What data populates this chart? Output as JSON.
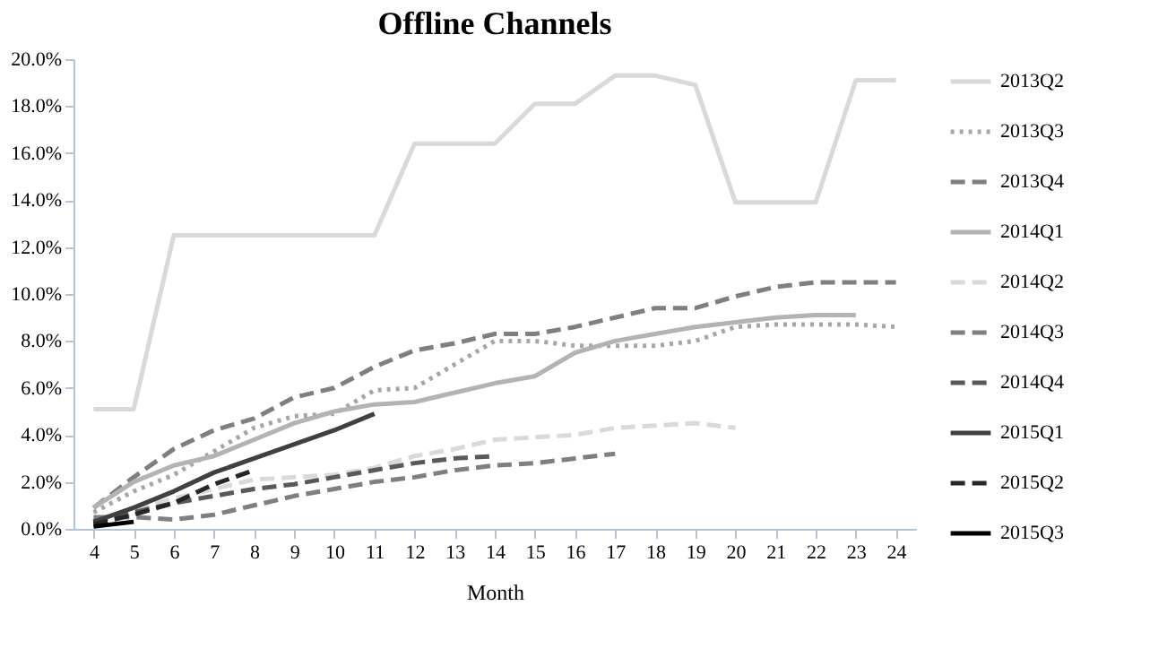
{
  "chart_data": {
    "type": "line",
    "title": "Offline Channels",
    "xlabel": "Month",
    "xlim": [
      3.5,
      24.5
    ],
    "xticks": [
      4,
      5,
      6,
      7,
      8,
      9,
      10,
      11,
      12,
      13,
      14,
      15,
      16,
      17,
      18,
      19,
      20,
      21,
      22,
      23,
      24
    ],
    "ylim": [
      0,
      20
    ],
    "yticks": [
      {
        "value": 0,
        "label": "0.0%"
      },
      {
        "value": 2,
        "label": "2.0%"
      },
      {
        "value": 4,
        "label": "4.0%"
      },
      {
        "value": 6,
        "label": "6.0%"
      },
      {
        "value": 8,
        "label": "8.0%"
      },
      {
        "value": 10,
        "label": "10.0%"
      },
      {
        "value": 12,
        "label": "12.0%"
      },
      {
        "value": 14,
        "label": "14.0%"
      },
      {
        "value": 16,
        "label": "16.0%"
      },
      {
        "value": 18,
        "label": "18.0%"
      },
      {
        "value": 20,
        "label": "20.0%"
      }
    ],
    "grid": false,
    "legend": "right",
    "marker": "none",
    "series": [
      {
        "name": "2013Q2",
        "color": "#d9d9d9",
        "line_style": "solid",
        "x": [
          4,
          5,
          6,
          7,
          8,
          9,
          10,
          11,
          12,
          13,
          14,
          15,
          16,
          17,
          18,
          19,
          20,
          21,
          22,
          23,
          24
        ],
        "values": [
          5.1,
          5.1,
          12.5,
          12.5,
          12.5,
          12.5,
          12.5,
          12.5,
          16.4,
          16.4,
          16.4,
          18.1,
          18.1,
          19.3,
          19.3,
          18.9,
          13.9,
          13.9,
          13.9,
          19.1,
          19.1
        ]
      },
      {
        "name": "2013Q3",
        "color": "#a6a6a6",
        "line_style": "dotted",
        "x": [
          4,
          5,
          6,
          7,
          8,
          9,
          10,
          11,
          12,
          13,
          14,
          15,
          16,
          17,
          18,
          19,
          20,
          21,
          22,
          23,
          24
        ],
        "values": [
          0.7,
          1.6,
          2.3,
          3.3,
          4.3,
          4.8,
          4.9,
          5.9,
          6.0,
          7.0,
          8.0,
          8.0,
          7.8,
          7.8,
          7.8,
          8.0,
          8.6,
          8.7,
          8.7,
          8.7,
          8.6
        ]
      },
      {
        "name": "2013Q4",
        "color": "#7f7f7f",
        "line_style": "dashed",
        "x": [
          4,
          5,
          6,
          7,
          8,
          9,
          10,
          11,
          12,
          13,
          14,
          15,
          16,
          17,
          18,
          19,
          20,
          21,
          22,
          23,
          24
        ],
        "values": [
          0.9,
          2.2,
          3.4,
          4.2,
          4.7,
          5.6,
          6.0,
          6.9,
          7.6,
          7.9,
          8.3,
          8.3,
          8.6,
          9.0,
          9.4,
          9.4,
          9.9,
          10.3,
          10.5,
          10.5,
          10.5
        ]
      },
      {
        "name": "2014Q1",
        "color": "#b3b3b3",
        "line_style": "solid",
        "x": [
          4,
          5,
          6,
          7,
          8,
          9,
          10,
          11,
          12,
          13,
          14,
          15,
          16,
          17,
          18,
          19,
          20,
          21,
          22,
          23
        ],
        "values": [
          0.9,
          2.0,
          2.7,
          3.1,
          3.8,
          4.5,
          5.0,
          5.3,
          5.4,
          5.8,
          6.2,
          6.5,
          7.5,
          8.0,
          8.3,
          8.6,
          8.8,
          9.0,
          9.1,
          9.1
        ]
      },
      {
        "name": "2014Q2",
        "color": "#d9d9d9",
        "line_style": "dashed",
        "x": [
          4,
          5,
          6,
          7,
          8,
          9,
          10,
          11,
          12,
          13,
          14,
          15,
          16,
          17,
          18,
          19,
          20
        ],
        "values": [
          0.3,
          0.8,
          1.3,
          1.7,
          2.1,
          2.2,
          2.3,
          2.6,
          3.1,
          3.4,
          3.8,
          3.9,
          4.0,
          4.3,
          4.4,
          4.5,
          4.3
        ]
      },
      {
        "name": "2014Q3",
        "color": "#7f7f7f",
        "line_style": "dashed",
        "x": [
          4,
          5,
          6,
          7,
          8,
          9,
          10,
          11,
          12,
          13,
          14,
          15,
          16,
          17
        ],
        "values": [
          0.5,
          0.5,
          0.4,
          0.6,
          1.0,
          1.4,
          1.7,
          2.0,
          2.2,
          2.5,
          2.7,
          2.8,
          3.0,
          3.2
        ]
      },
      {
        "name": "2014Q4",
        "color": "#595959",
        "line_style": "dashed",
        "x": [
          4,
          5,
          6,
          7,
          8,
          9,
          10,
          11,
          12,
          13,
          14
        ],
        "values": [
          0.3,
          0.7,
          1.1,
          1.4,
          1.7,
          1.9,
          2.2,
          2.5,
          2.8,
          3.0,
          3.1
        ]
      },
      {
        "name": "2015Q1",
        "color": "#404040",
        "line_style": "solid",
        "x": [
          4,
          5,
          6,
          7,
          8,
          9,
          10,
          11
        ],
        "values": [
          0.3,
          0.9,
          1.6,
          2.4,
          3.0,
          3.6,
          4.2,
          4.9
        ]
      },
      {
        "name": "2015Q2",
        "color": "#262626",
        "line_style": "dashed",
        "x": [
          4,
          5,
          6,
          7,
          8
        ],
        "values": [
          0.2,
          0.6,
          1.1,
          1.9,
          2.5
        ]
      },
      {
        "name": "2015Q3",
        "color": "#000000",
        "line_style": "solid",
        "x": [
          4,
          5
        ],
        "values": [
          0.1,
          0.3
        ]
      }
    ]
  }
}
